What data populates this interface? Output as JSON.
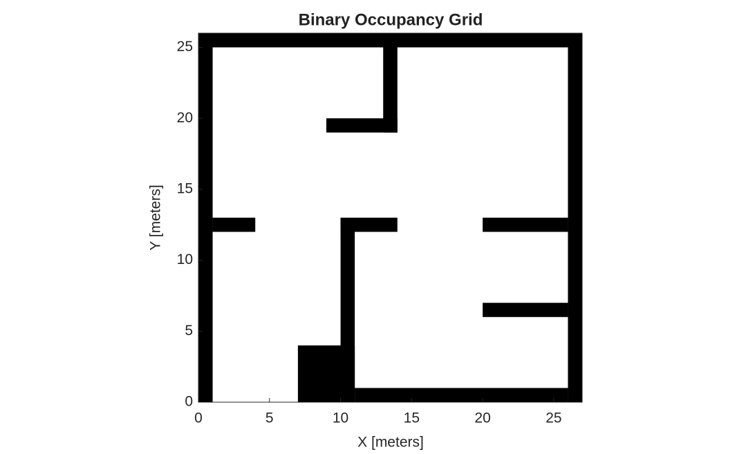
{
  "chart_data": {
    "type": "occupancy",
    "title": "Binary Occupancy Grid",
    "x_label": "X [meters]",
    "y_label": "Y [meters]",
    "xlim": [
      0,
      27
    ],
    "ylim": [
      0,
      26
    ],
    "xticks": [
      0,
      5,
      10,
      15,
      20,
      25
    ],
    "yticks": [
      0,
      5,
      10,
      15,
      20,
      25
    ],
    "color": "#000000",
    "obstacles": [
      {
        "x": [
          0,
          1
        ],
        "y": [
          0,
          26
        ]
      },
      {
        "x": [
          0,
          27
        ],
        "y": [
          25,
          26
        ]
      },
      {
        "x": [
          26,
          27
        ],
        "y": [
          0,
          26
        ]
      },
      {
        "x": [
          11,
          26
        ],
        "y": [
          0,
          1
        ]
      },
      {
        "x": [
          7,
          11
        ],
        "y": [
          0,
          4
        ]
      },
      {
        "x": [
          10,
          11
        ],
        "y": [
          0,
          13
        ]
      },
      {
        "x": [
          10,
          14
        ],
        "y": [
          12,
          13
        ]
      },
      {
        "x": [
          1,
          4
        ],
        "y": [
          12,
          13
        ]
      },
      {
        "x": [
          20,
          26
        ],
        "y": [
          12,
          13
        ]
      },
      {
        "x": [
          20,
          26
        ],
        "y": [
          6,
          7
        ]
      },
      {
        "x": [
          13,
          14
        ],
        "y": [
          19,
          26
        ]
      },
      {
        "x": [
          9,
          14
        ],
        "y": [
          19,
          20
        ]
      }
    ]
  }
}
